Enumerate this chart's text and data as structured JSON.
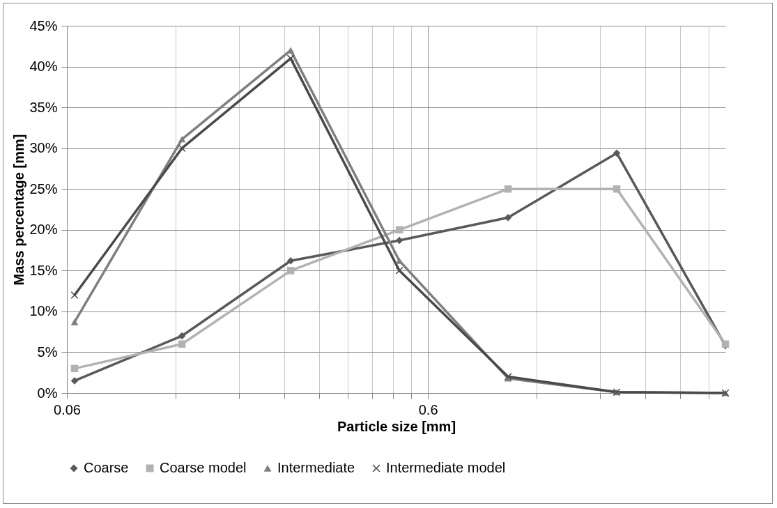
{
  "chart_data": {
    "type": "line",
    "xlabel": "Particle size [mm]",
    "ylabel": "Mass percentage [mm]",
    "x": [
      0.063,
      0.125,
      0.25,
      0.5,
      1,
      2,
      4
    ],
    "series": [
      {
        "name": "Coarse",
        "color": "#595959",
        "marker": "diamond",
        "values": [
          1.5,
          7,
          16.2,
          18.7,
          21.5,
          29.4,
          5.8
        ]
      },
      {
        "name": "Coarse model",
        "color": "#b2b2b2",
        "marker": "square",
        "values": [
          3,
          6,
          15,
          20,
          25,
          25,
          6
        ]
      },
      {
        "name": "Intermediate",
        "color": "#7f7f7f",
        "marker": "triangle",
        "values": [
          8.7,
          31.1,
          42,
          16.2,
          1.8,
          0.1,
          0
        ]
      },
      {
        "name": "Intermediate model",
        "color": "#4a4a4a",
        "marker": "cross",
        "values": [
          12,
          30,
          41,
          15,
          2,
          0.1,
          0
        ]
      }
    ],
    "log": "x",
    "xlim": [
      0.06,
      4
    ],
    "xticks": [
      0.06,
      {
        "value": 0.12,
        "label": null
      },
      {
        "value": 0.18,
        "label": null
      },
      {
        "value": 0.24,
        "label": null
      },
      {
        "value": 0.3,
        "label": null
      },
      {
        "value": 0.36,
        "label": null
      },
      {
        "value": 0.42,
        "label": null
      },
      {
        "value": 0.48,
        "label": null
      },
      {
        "value": 0.54,
        "label": null
      },
      0.6,
      {
        "value": 1.2,
        "label": null
      },
      {
        "value": 1.8,
        "label": null
      },
      {
        "value": 2.4,
        "label": null
      },
      {
        "value": 3,
        "label": null
      },
      {
        "value": 3.6,
        "label": null
      }
    ],
    "ylim": [
      0,
      45
    ],
    "yticks": [
      {
        "value": 0,
        "label": "0%"
      },
      {
        "value": 5,
        "label": "5%"
      },
      {
        "value": 10,
        "label": "10%"
      },
      {
        "value": 15,
        "label": "15%"
      },
      {
        "value": 20,
        "label": "20%"
      },
      {
        "value": 25,
        "label": "25%"
      },
      {
        "value": 30,
        "label": "30%"
      },
      {
        "value": 35,
        "label": "35%"
      },
      {
        "value": 40,
        "label": "40%"
      },
      {
        "value": 45,
        "label": "45%"
      }
    ],
    "grid": true,
    "legend": "bottom"
  }
}
